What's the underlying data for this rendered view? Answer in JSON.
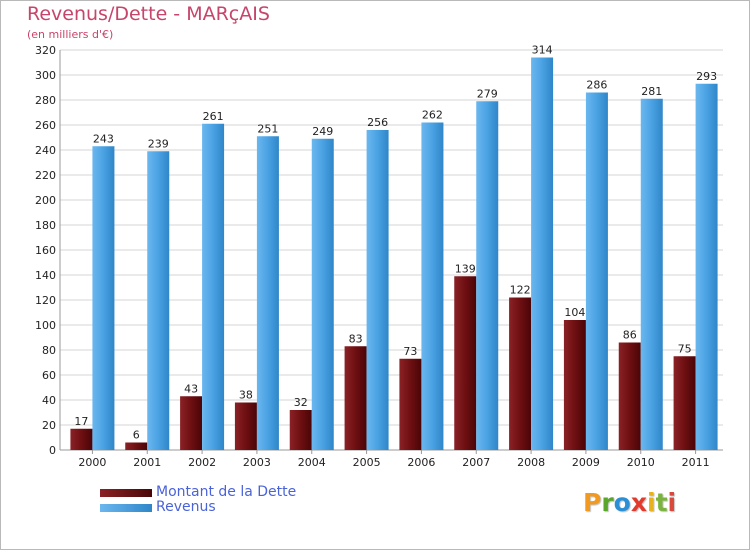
{
  "colors": {
    "dette": "#6e0f12",
    "revenus": "#4aa2e3",
    "title": "#c7446a",
    "legend_text": "#4a63d8",
    "grid": "#d6d6d6",
    "axis_text": "#222222",
    "logo": [
      "#f29a1f",
      "#5aa62a",
      "#2b8fd6",
      "#e23b2e",
      "#e8b21c",
      "#7ab33e",
      "#d8483b"
    ]
  },
  "header": {
    "title": "Revenus/Dette - MARçAIS",
    "subtitle": "(en milliers d'€)"
  },
  "legend": {
    "items": [
      {
        "label": "Montant de la Dette",
        "color_key": "dette"
      },
      {
        "label": "Revenus",
        "color_key": "revenus"
      }
    ]
  },
  "logo": {
    "letters": [
      "P",
      "r",
      "o",
      "x",
      "i",
      "t",
      "i"
    ]
  },
  "chart_data": {
    "type": "bar",
    "title": "Revenus/Dette - MARçAIS",
    "subtitle": "(en milliers d'€)",
    "xlabel": "",
    "ylabel": "",
    "categories": [
      "2000",
      "2001",
      "2002",
      "2003",
      "2004",
      "2005",
      "2006",
      "2007",
      "2008",
      "2009",
      "2010",
      "2011"
    ],
    "series": [
      {
        "name": "Montant de la Dette",
        "values": [
          17,
          6,
          43,
          38,
          32,
          83,
          73,
          139,
          122,
          104,
          86,
          75
        ]
      },
      {
        "name": "Revenus",
        "values": [
          243,
          239,
          261,
          251,
          249,
          256,
          262,
          279,
          314,
          286,
          281,
          293
        ]
      }
    ],
    "ylim": [
      0,
      320
    ],
    "yticks": [
      0,
      20,
      40,
      60,
      80,
      100,
      120,
      140,
      160,
      180,
      200,
      220,
      240,
      260,
      280,
      300,
      320
    ],
    "grid": true,
    "legend_position": "bottom-left"
  }
}
